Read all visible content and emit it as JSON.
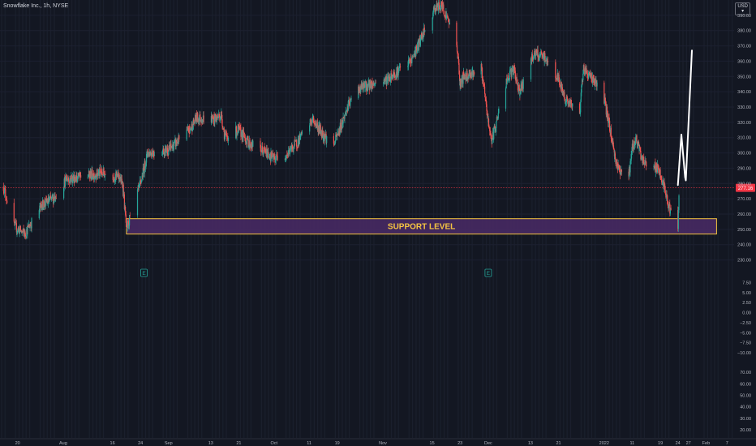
{
  "header": {
    "title": "Snowflake Inc., 1h, NYSE",
    "currency": "USD"
  },
  "chart_data": {
    "type": "candlestick",
    "series_name": "",
    "price_axis": {
      "range": [
        225,
        400
      ],
      "ticks": [
        390,
        380,
        370,
        360,
        350,
        340,
        330,
        320,
        310,
        300,
        290,
        280,
        270,
        260,
        250,
        240,
        230
      ]
    },
    "current_price": 277.16,
    "current_price_label": "277.16",
    "support_zone": {
      "label": "SUPPORT LEVEL",
      "low": 247,
      "high": 257,
      "start_date": "2021-08-20",
      "end_date": "2022-02-04"
    },
    "projection_path": [
      {
        "date": "2022-01-24",
        "price": 279
      },
      {
        "date": "2022-01-25",
        "price": 312
      },
      {
        "date": "2022-01-26",
        "price": 284
      },
      {
        "date": "2022-01-26",
        "price": 282
      },
      {
        "date": "2022-01-28",
        "price": 367
      }
    ],
    "earnings_markers": [
      {
        "date": "2021-08-25",
        "label": "E"
      },
      {
        "date": "2021-12-01",
        "label": "E"
      }
    ],
    "price_keypoints": [
      {
        "date": "2021-07-16",
        "price": 278
      },
      {
        "date": "2021-07-19",
        "price": 252
      },
      {
        "date": "2021-07-22",
        "price": 247
      },
      {
        "date": "2021-07-27",
        "price": 266
      },
      {
        "date": "2021-07-30",
        "price": 270
      },
      {
        "date": "2021-08-03",
        "price": 283
      },
      {
        "date": "2021-08-09",
        "price": 285
      },
      {
        "date": "2021-08-13",
        "price": 287
      },
      {
        "date": "2021-08-18",
        "price": 284
      },
      {
        "date": "2021-08-19",
        "price": 278
      },
      {
        "date": "2021-08-20",
        "price": 250
      },
      {
        "date": "2021-08-24",
        "price": 280
      },
      {
        "date": "2021-08-26",
        "price": 300
      },
      {
        "date": "2021-09-01",
        "price": 302
      },
      {
        "date": "2021-09-07",
        "price": 315
      },
      {
        "date": "2021-09-09",
        "price": 323
      },
      {
        "date": "2021-09-14",
        "price": 322
      },
      {
        "date": "2021-09-16",
        "price": 325
      },
      {
        "date": "2021-09-17",
        "price": 310
      },
      {
        "date": "2021-09-21",
        "price": 315
      },
      {
        "date": "2021-09-24",
        "price": 306
      },
      {
        "date": "2021-09-29",
        "price": 300
      },
      {
        "date": "2021-10-01",
        "price": 296
      },
      {
        "date": "2021-10-05",
        "price": 300
      },
      {
        "date": "2021-10-08",
        "price": 308
      },
      {
        "date": "2021-10-12",
        "price": 322
      },
      {
        "date": "2021-10-15",
        "price": 312
      },
      {
        "date": "2021-10-18",
        "price": 305
      },
      {
        "date": "2021-10-22",
        "price": 330
      },
      {
        "date": "2021-10-25",
        "price": 342
      },
      {
        "date": "2021-10-29",
        "price": 345
      },
      {
        "date": "2021-11-02",
        "price": 348
      },
      {
        "date": "2021-11-05",
        "price": 353
      },
      {
        "date": "2021-11-09",
        "price": 360
      },
      {
        "date": "2021-11-12",
        "price": 375
      },
      {
        "date": "2021-11-16",
        "price": 395
      },
      {
        "date": "2021-11-18",
        "price": 396
      },
      {
        "date": "2021-11-19",
        "price": 390
      },
      {
        "date": "2021-11-22",
        "price": 372
      },
      {
        "date": "2021-11-23",
        "price": 345
      },
      {
        "date": "2021-11-24",
        "price": 350
      },
      {
        "date": "2021-11-29",
        "price": 355
      },
      {
        "date": "2021-12-01",
        "price": 320
      },
      {
        "date": "2021-12-02",
        "price": 308
      },
      {
        "date": "2021-12-06",
        "price": 345
      },
      {
        "date": "2021-12-08",
        "price": 355
      },
      {
        "date": "2021-12-10",
        "price": 340
      },
      {
        "date": "2021-12-14",
        "price": 365
      },
      {
        "date": "2021-12-17",
        "price": 362
      },
      {
        "date": "2021-12-21",
        "price": 348
      },
      {
        "date": "2021-12-23",
        "price": 335
      },
      {
        "date": "2021-12-27",
        "price": 325
      },
      {
        "date": "2021-12-28",
        "price": 355
      },
      {
        "date": "2021-12-31",
        "price": 348
      },
      {
        "date": "2022-01-03",
        "price": 335
      },
      {
        "date": "2022-01-05",
        "price": 312
      },
      {
        "date": "2022-01-06",
        "price": 298
      },
      {
        "date": "2022-01-07",
        "price": 290
      },
      {
        "date": "2022-01-10",
        "price": 285
      },
      {
        "date": "2022-01-11",
        "price": 303
      },
      {
        "date": "2022-01-12",
        "price": 310
      },
      {
        "date": "2022-01-13",
        "price": 302
      },
      {
        "date": "2022-01-14",
        "price": 295
      },
      {
        "date": "2022-01-18",
        "price": 290
      },
      {
        "date": "2022-01-19",
        "price": 285
      },
      {
        "date": "2022-01-20",
        "price": 278
      },
      {
        "date": "2022-01-21",
        "price": 268
      },
      {
        "date": "2022-01-24",
        "price": 250
      },
      {
        "date": "2022-01-24",
        "price": 277
      }
    ],
    "time_axis": [
      {
        "date": "2021-07-20",
        "label": "20"
      },
      {
        "date": "2021-08-02",
        "label": "Aug"
      },
      {
        "date": "2021-08-16",
        "label": "16"
      },
      {
        "date": "2021-08-24",
        "label": "24"
      },
      {
        "date": "2021-09-01",
        "label": "Sep"
      },
      {
        "date": "2021-09-13",
        "label": "13"
      },
      {
        "date": "2021-09-21",
        "label": "21"
      },
      {
        "date": "2021-10-01",
        "label": "Oct"
      },
      {
        "date": "2021-10-11",
        "label": "11"
      },
      {
        "date": "2021-10-19",
        "label": "19"
      },
      {
        "date": "2021-11-01",
        "label": "Nov"
      },
      {
        "date": "2021-11-15",
        "label": "15"
      },
      {
        "date": "2021-11-23",
        "label": "23"
      },
      {
        "date": "2021-12-01",
        "label": "Dec"
      },
      {
        "date": "2021-12-13",
        "label": "13"
      },
      {
        "date": "2021-12-21",
        "label": "21"
      },
      {
        "date": "2022-01-03",
        "label": "2022"
      },
      {
        "date": "2022-01-11",
        "label": "11"
      },
      {
        "date": "2022-01-19",
        "label": "19"
      },
      {
        "date": "2022-01-24",
        "label": "24"
      },
      {
        "date": "2022-01-27",
        "label": "27"
      },
      {
        "date": "2022-02-01",
        "label": "Feb"
      },
      {
        "date": "2022-02-07",
        "label": "7"
      }
    ],
    "date_range": [
      "2021-07-15",
      "2022-02-09"
    ],
    "indicator_pane": {
      "type": "oscillator",
      "ticks": [
        "7.50",
        "5.00",
        "2.50",
        "0.00",
        "−2.50",
        "−5.00",
        "−7.50",
        "−10.00"
      ],
      "range": [
        -12,
        10
      ]
    },
    "volume_pane": {
      "ticks": [
        "70.00",
        "60.00",
        "50.00",
        "40.00",
        "30.00",
        "20.00"
      ],
      "range": [
        15,
        75
      ]
    },
    "colors": {
      "background": "#131722",
      "up": "#26a69a",
      "down": "#ef5350",
      "price_line": "#f23645",
      "zone_fill": "#4a2a66",
      "zone_border": "#f5c542",
      "zone_text": "#f5c542",
      "projection": "#ffffff",
      "earnings": "#26a69a",
      "axis_text": "#b2b5be"
    }
  }
}
